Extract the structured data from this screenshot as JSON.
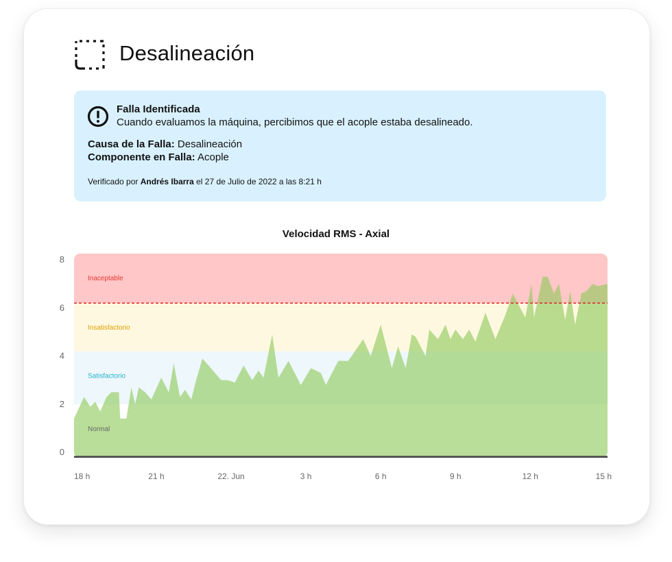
{
  "header": {
    "title": "Desalineación",
    "icon": "dashed-square-corner-icon"
  },
  "alert": {
    "icon": "exclamation-circle-icon",
    "title": "Falla Identificada",
    "description": "Cuando evaluamos la máquina, percibimos que el acople estaba desalineado.",
    "cause_label": "Causa de la Falla:",
    "cause_value": "Desalineación",
    "component_label": "Componente en Falla:",
    "component_value": "Acople",
    "verified_prefix": "Verificado por",
    "verified_by": "Andrés Ibarra",
    "verified_suffix": "el 27 de Julio de 2022 a las 8:21 h",
    "background_color": "#d9f1fe"
  },
  "chart_data": {
    "type": "area",
    "title": "Velocidad RMS - Axial",
    "ylim": [
      0,
      8
    ],
    "yticks": [
      "0",
      "2",
      "4",
      "6",
      "8"
    ],
    "x_tick_labels": [
      "18 h",
      "21 h",
      "22. Jun",
      "3 h",
      "6 h",
      "9 h",
      "12 h",
      "15 h"
    ],
    "x_tick_hours": [
      0,
      3,
      6,
      9,
      12,
      15,
      18,
      21
    ],
    "xlim": [
      -0.3,
      21.1
    ],
    "threshold": 6.2,
    "zones": [
      {
        "label": "Normal",
        "from": 0,
        "to": 2,
        "color": "#ffffff",
        "label_color": "#666666"
      },
      {
        "label": "Satisfactorio",
        "from": 2,
        "to": 4.2,
        "color": "#eef7fb",
        "label_color": "#22b3cc"
      },
      {
        "label": "Insatisfactorio",
        "from": 4.2,
        "to": 6.2,
        "color": "#fff8e1",
        "label_color": "#e0a100"
      },
      {
        "label": "Inaceptable",
        "from": 6.2,
        "to": 8.3,
        "color": "#ffc7c7",
        "label_color": "#e53935"
      }
    ],
    "series": [
      {
        "values_x": [
          -0.3,
          0.1,
          0.35,
          0.55,
          0.75,
          1.0,
          1.2,
          1.5,
          1.55,
          1.8,
          2.0,
          2.15,
          2.3,
          2.55,
          2.8,
          3.2,
          3.5,
          3.7,
          3.95,
          4.15,
          4.4,
          4.6,
          4.85,
          5.6,
          5.85,
          6.15,
          6.5,
          6.85,
          7.1,
          7.3,
          7.65,
          7.9,
          8.3,
          8.8,
          9.2,
          9.6,
          9.8,
          10.3,
          10.7,
          11.3,
          11.6,
          12.0,
          12.45,
          12.7,
          13.0,
          13.25,
          13.4,
          13.8,
          13.95,
          14.3,
          14.6,
          14.8,
          15.0,
          15.3,
          15.55,
          15.8,
          16.2,
          16.6,
          17.0,
          17.3,
          17.8,
          18.05,
          18.15,
          18.5,
          18.7,
          18.95,
          19.15,
          19.4,
          19.6,
          19.8,
          20.05,
          20.25,
          20.5,
          20.7,
          21.1
        ],
        "values_y": [
          1.4,
          2.3,
          1.9,
          2.1,
          1.7,
          2.3,
          2.5,
          2.5,
          1.4,
          1.4,
          2.7,
          2.0,
          2.7,
          2.5,
          2.2,
          3.1,
          2.5,
          3.7,
          2.3,
          2.6,
          2.2,
          3.0,
          3.9,
          3.0,
          3.0,
          2.9,
          3.6,
          3.0,
          3.4,
          3.1,
          4.9,
          3.1,
          3.8,
          2.8,
          3.5,
          3.3,
          2.8,
          3.8,
          3.8,
          4.7,
          4.0,
          5.3,
          3.5,
          4.4,
          3.5,
          4.9,
          4.8,
          4.0,
          5.1,
          4.7,
          5.3,
          4.7,
          5.1,
          4.7,
          5.1,
          4.6,
          5.8,
          4.7,
          5.7,
          6.6,
          5.6,
          7.0,
          5.6,
          7.3,
          7.3,
          6.6,
          7.0,
          5.5,
          6.7,
          5.3,
          6.6,
          6.7,
          7.0,
          6.9,
          7.0
        ]
      }
    ],
    "fill_color": "#8ec95a"
  }
}
